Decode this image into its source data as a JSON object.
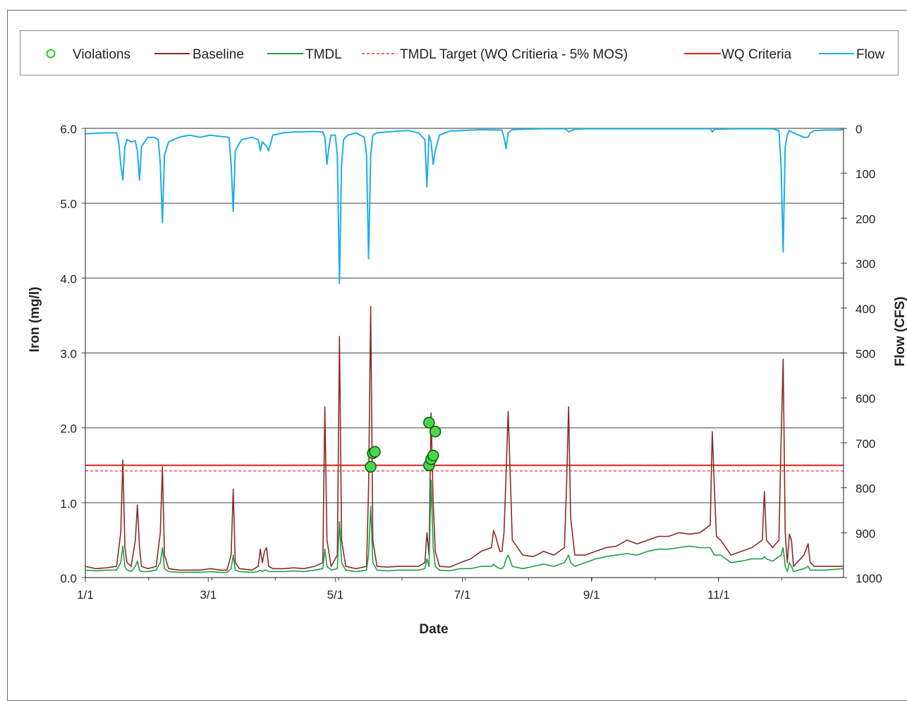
{
  "chart_data": {
    "type": "line",
    "xlabel": "Date",
    "ylabel": "Iron (mg/l)",
    "y2label": "Flow (CFS)",
    "x_ticks": [
      "1/1",
      "3/1",
      "5/1",
      "7/1",
      "9/1",
      "11/1"
    ],
    "x_tick_days": [
      0,
      59,
      120,
      181,
      243,
      304
    ],
    "x_range_days": [
      0,
      364
    ],
    "ylim": [
      0,
      6
    ],
    "y_ticks": [
      "0.0",
      "1.0",
      "2.0",
      "3.0",
      "4.0",
      "5.0",
      "6.0"
    ],
    "y2lim": [
      1000,
      0
    ],
    "y2_ticks": [
      "0",
      "100",
      "200",
      "300",
      "400",
      "500",
      "600",
      "700",
      "800",
      "900",
      "1000"
    ],
    "grid": "horizontal",
    "legend_position": "top",
    "legend": [
      "Violations",
      "Baseline",
      "TMDL",
      "TMDL Target (WQ Critieria - 5% MOS)",
      "WQ Criteria",
      "Flow"
    ],
    "colors": {
      "violations": "#22cc22",
      "baseline": "#8b2a2a",
      "tmdl": "#1e9e46",
      "target": "#e23a3a",
      "criteria": "#e02020",
      "flow": "#1eaee8"
    },
    "wq_criteria": 1.5,
    "tmdl_target": 1.425,
    "series": [
      {
        "name": "Baseline",
        "x": [
          0,
          5,
          10,
          15,
          17,
          18,
          19,
          20,
          22,
          24,
          25,
          26,
          27,
          30,
          34,
          36,
          37,
          38,
          40,
          45,
          50,
          55,
          60,
          65,
          68,
          70,
          71,
          72,
          74,
          80,
          83,
          84,
          85,
          86,
          87,
          88,
          90,
          95,
          100,
          105,
          110,
          114,
          115,
          116,
          118,
          121,
          122,
          123,
          125,
          130,
          135,
          136,
          137,
          138,
          140,
          145,
          150,
          155,
          160,
          163,
          164,
          165,
          166,
          167,
          168,
          170,
          175,
          180,
          185,
          190,
          195,
          196,
          197,
          199,
          200,
          201,
          202,
          203,
          205,
          210,
          215,
          220,
          225,
          230,
          231,
          232,
          233,
          235,
          240,
          245,
          250,
          255,
          260,
          265,
          270,
          275,
          280,
          285,
          290,
          295,
          300,
          301,
          302,
          303,
          305,
          310,
          315,
          320,
          325,
          326,
          327,
          330,
          333,
          334,
          335,
          336,
          337,
          338,
          339,
          340,
          345,
          347,
          348,
          350,
          355,
          360,
          364
        ],
        "values": [
          0.15,
          0.12,
          0.13,
          0.15,
          0.6,
          1.57,
          0.4,
          0.2,
          0.15,
          0.5,
          0.97,
          0.4,
          0.15,
          0.12,
          0.15,
          0.6,
          1.48,
          0.3,
          0.12,
          0.1,
          0.1,
          0.1,
          0.12,
          0.1,
          0.1,
          0.3,
          1.18,
          0.2,
          0.12,
          0.1,
          0.15,
          0.38,
          0.2,
          0.35,
          0.4,
          0.15,
          0.12,
          0.12,
          0.13,
          0.12,
          0.15,
          0.2,
          2.28,
          0.5,
          0.15,
          0.3,
          3.22,
          0.5,
          0.15,
          0.12,
          0.15,
          1.2,
          3.62,
          0.5,
          0.15,
          0.14,
          0.15,
          0.15,
          0.15,
          0.2,
          0.6,
          0.3,
          2.2,
          1.0,
          0.35,
          0.15,
          0.14,
          0.2,
          0.25,
          0.35,
          0.4,
          0.63,
          0.55,
          0.35,
          0.35,
          0.6,
          1.4,
          2.22,
          0.5,
          0.3,
          0.28,
          0.35,
          0.3,
          0.4,
          1.2,
          2.28,
          0.8,
          0.3,
          0.3,
          0.35,
          0.4,
          0.42,
          0.5,
          0.45,
          0.5,
          0.55,
          0.55,
          0.6,
          0.58,
          0.6,
          0.7,
          1.95,
          1.2,
          0.55,
          0.5,
          0.3,
          0.35,
          0.4,
          0.5,
          1.15,
          0.5,
          0.4,
          0.5,
          1.8,
          2.92,
          0.6,
          0.2,
          0.58,
          0.5,
          0.15,
          0.3,
          0.45,
          0.2,
          0.15,
          0.15,
          0.15,
          0.15
        ]
      },
      {
        "name": "TMDL",
        "x": [
          0,
          5,
          10,
          15,
          17,
          18,
          19,
          20,
          22,
          24,
          25,
          26,
          27,
          30,
          34,
          36,
          37,
          38,
          40,
          45,
          50,
          55,
          60,
          65,
          68,
          70,
          71,
          72,
          74,
          80,
          83,
          84,
          85,
          86,
          87,
          88,
          90,
          95,
          100,
          105,
          110,
          114,
          115,
          116,
          118,
          121,
          122,
          123,
          125,
          130,
          135,
          136,
          137,
          138,
          140,
          145,
          150,
          155,
          160,
          163,
          164,
          165,
          166,
          167,
          168,
          170,
          175,
          180,
          185,
          190,
          195,
          196,
          197,
          199,
          200,
          201,
          202,
          203,
          205,
          210,
          215,
          220,
          225,
          230,
          231,
          232,
          233,
          235,
          240,
          245,
          250,
          255,
          260,
          265,
          270,
          275,
          280,
          285,
          290,
          295,
          300,
          301,
          302,
          303,
          305,
          310,
          315,
          320,
          325,
          326,
          327,
          330,
          333,
          334,
          335,
          336,
          337,
          338,
          339,
          340,
          345,
          347,
          348,
          350,
          355,
          360,
          364
        ],
        "values": [
          0.1,
          0.09,
          0.1,
          0.1,
          0.2,
          0.42,
          0.15,
          0.1,
          0.08,
          0.15,
          0.22,
          0.1,
          0.08,
          0.08,
          0.1,
          0.2,
          0.4,
          0.12,
          0.08,
          0.07,
          0.07,
          0.07,
          0.08,
          0.07,
          0.07,
          0.12,
          0.3,
          0.1,
          0.08,
          0.07,
          0.08,
          0.1,
          0.08,
          0.1,
          0.1,
          0.08,
          0.08,
          0.08,
          0.09,
          0.08,
          0.1,
          0.12,
          0.38,
          0.15,
          0.1,
          0.12,
          0.75,
          0.2,
          0.1,
          0.08,
          0.1,
          0.3,
          0.95,
          0.2,
          0.1,
          0.09,
          0.1,
          0.1,
          0.1,
          0.12,
          0.25,
          0.15,
          1.3,
          0.4,
          0.15,
          0.1,
          0.09,
          0.12,
          0.12,
          0.15,
          0.15,
          0.18,
          0.15,
          0.12,
          0.12,
          0.15,
          0.25,
          0.3,
          0.15,
          0.12,
          0.15,
          0.18,
          0.15,
          0.2,
          0.25,
          0.3,
          0.2,
          0.15,
          0.2,
          0.25,
          0.28,
          0.3,
          0.32,
          0.3,
          0.35,
          0.38,
          0.38,
          0.4,
          0.42,
          0.4,
          0.4,
          0.35,
          0.3,
          0.3,
          0.3,
          0.2,
          0.22,
          0.25,
          0.25,
          0.28,
          0.25,
          0.22,
          0.28,
          0.3,
          0.4,
          0.15,
          0.08,
          0.2,
          0.15,
          0.08,
          0.12,
          0.15,
          0.1,
          0.1,
          0.1,
          0.11,
          0.12
        ]
      },
      {
        "name": "Flow",
        "axis": "right",
        "x": [
          0,
          10,
          15,
          16,
          17,
          18,
          19,
          20,
          22,
          24,
          25,
          26,
          27,
          30,
          33,
          35,
          36,
          37,
          38,
          40,
          45,
          50,
          55,
          60,
          65,
          69,
          70,
          71,
          72,
          75,
          80,
          83,
          84,
          85,
          86,
          87,
          88,
          90,
          95,
          100,
          110,
          114,
          115,
          116,
          117,
          118,
          120,
          121,
          122,
          123,
          124,
          126,
          130,
          134,
          135,
          136,
          137,
          138,
          140,
          145,
          150,
          155,
          160,
          163,
          164,
          165,
          166,
          167,
          168,
          170,
          175,
          180,
          190,
          200,
          201,
          202,
          203,
          205,
          210,
          220,
          230,
          231,
          232,
          235,
          240,
          250,
          260,
          270,
          280,
          290,
          300,
          301,
          302,
          305,
          310,
          320,
          330,
          333,
          334,
          335,
          336,
          337,
          338,
          340,
          345,
          347,
          348,
          350,
          355,
          360,
          364
        ],
        "values": [
          12,
          10,
          10,
          30,
          80,
          115,
          40,
          25,
          30,
          28,
          50,
          115,
          40,
          20,
          20,
          25,
          80,
          210,
          60,
          30,
          20,
          15,
          20,
          15,
          18,
          20,
          80,
          185,
          50,
          25,
          20,
          25,
          50,
          30,
          35,
          40,
          50,
          15,
          10,
          8,
          7,
          8,
          20,
          80,
          40,
          15,
          15,
          60,
          345,
          80,
          25,
          15,
          10,
          20,
          60,
          290,
          60,
          15,
          10,
          8,
          6,
          5,
          10,
          25,
          130,
          15,
          30,
          80,
          50,
          15,
          6,
          5,
          3,
          4,
          20,
          45,
          10,
          3,
          2,
          1,
          1,
          3,
          8,
          2,
          1,
          1,
          1,
          1,
          1,
          1,
          1,
          8,
          2,
          2,
          1,
          1,
          1,
          5,
          80,
          275,
          40,
          15,
          5,
          10,
          20,
          20,
          10,
          5,
          4,
          4,
          3
        ]
      },
      {
        "name": "Violations",
        "type": "scatter",
        "x": [
          137,
          138,
          139,
          165,
          166,
          167,
          168,
          165
        ],
        "values": [
          1.48,
          1.66,
          1.68,
          1.5,
          1.58,
          1.63,
          1.95,
          2.07
        ]
      }
    ]
  }
}
